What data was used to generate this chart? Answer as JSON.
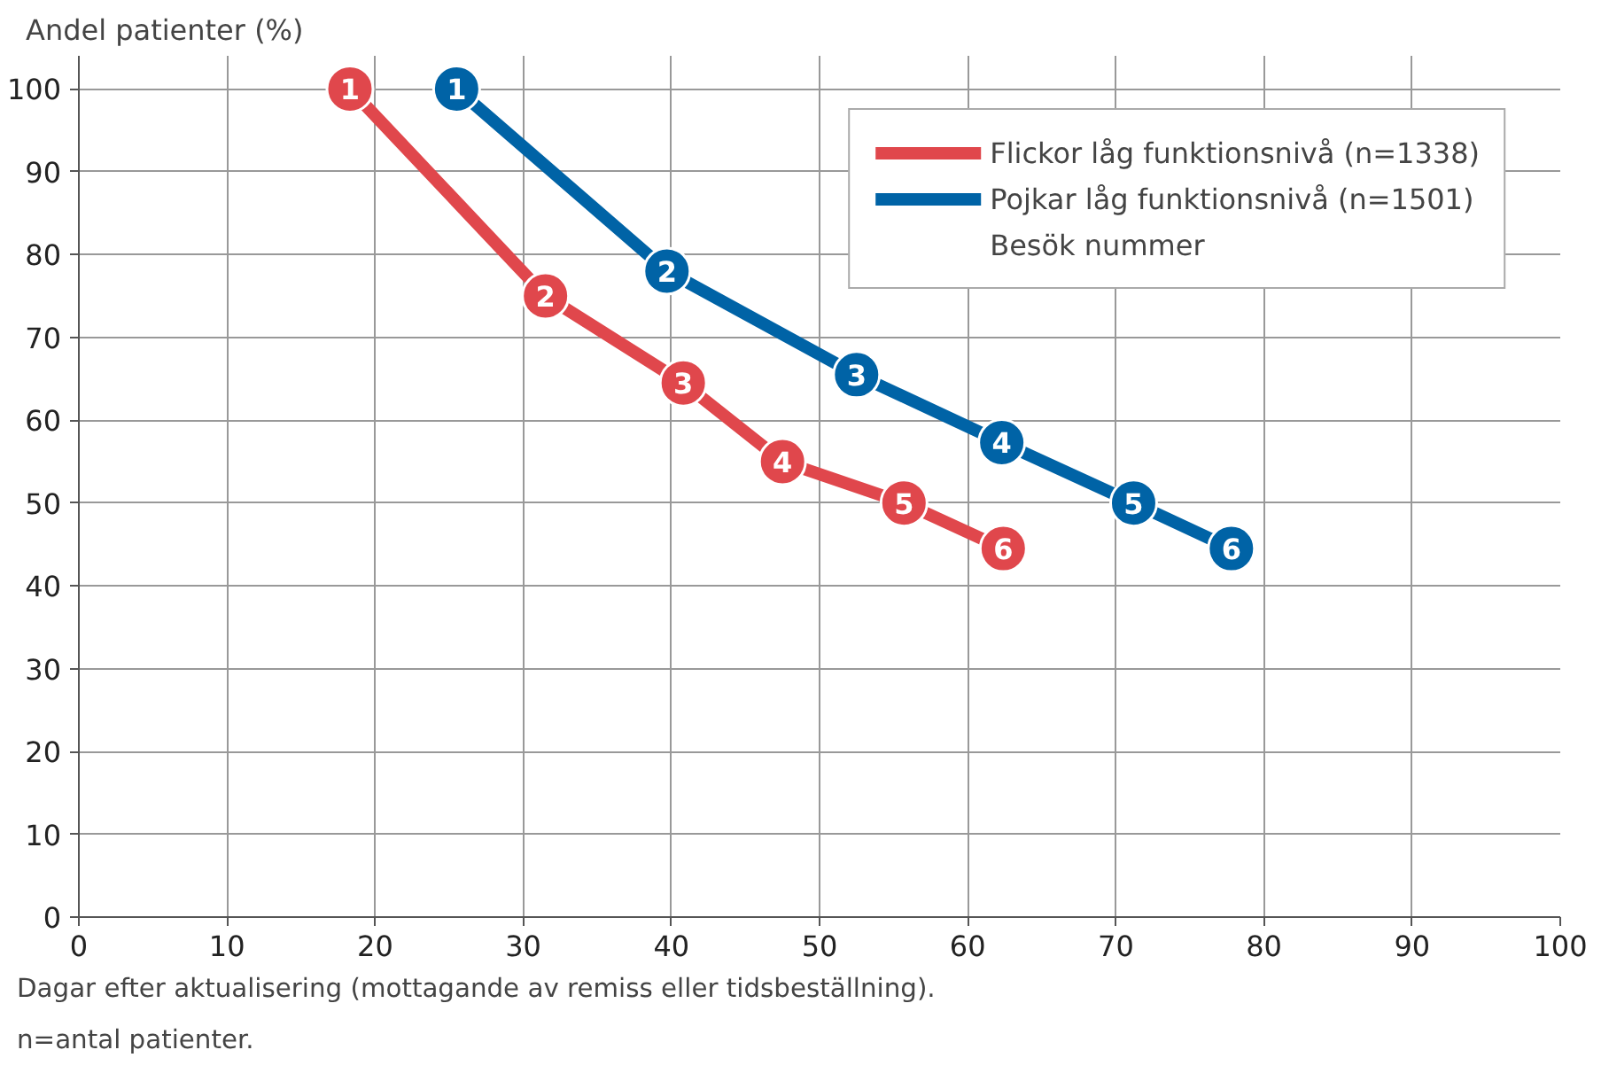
{
  "chart_data": {
    "type": "line",
    "ylabel": "Andel patienter (%)",
    "xlabel": "Dagar efter aktualisering (mottagande av remiss eller tidsbeställning).",
    "xlim": [
      0,
      100
    ],
    "xticks": [
      0,
      10,
      20,
      30,
      40,
      50,
      60,
      70,
      80,
      90,
      100
    ],
    "ylim": [
      0,
      104
    ],
    "yticks": [
      0,
      10,
      20,
      30,
      40,
      50,
      60,
      70,
      80,
      90,
      100
    ],
    "grid": true,
    "legend": "top right",
    "marker": "circle",
    "line_style": "solid",
    "series": [
      {
        "name": "Flickor låg funktionsnivå (n=1338)",
        "color": "#e0474c",
        "x": [
          18.3,
          31.5,
          40.8,
          47.5,
          55.7,
          62.4
        ],
        "values": [
          100,
          75,
          64.5,
          55,
          50,
          44.5
        ]
      },
      {
        "name": "Pojkar låg funktionsnivå (n=1501)",
        "color": "#0063a6",
        "x": [
          25.5,
          39.7,
          52.5,
          62.3,
          71.2,
          77.8
        ],
        "values": [
          100,
          78,
          65.5,
          57.3,
          50,
          44.5
        ]
      }
    ],
    "annotations": [
      "Besök nummer",
      "n=antal patienter.",
      {
        "text": "1",
        "x": 18.3,
        "y": 100
      },
      {
        "text": "2",
        "x": 31.5,
        "y": 75
      },
      {
        "text": "3",
        "x": 40.8,
        "y": 64.5
      },
      {
        "text": "4",
        "x": 47.5,
        "y": 55
      },
      {
        "text": "5",
        "x": 55.7,
        "y": 50
      },
      {
        "text": "6",
        "x": 62.4,
        "y": 44.5
      },
      {
        "text": "1",
        "x": 25.5,
        "y": 100
      },
      {
        "text": "2",
        "x": 39.7,
        "y": 78
      },
      {
        "text": "3",
        "x": 52.5,
        "y": 65.5
      },
      {
        "text": "4",
        "x": 62.3,
        "y": 57.3
      },
      {
        "text": "5",
        "x": 71.2,
        "y": 50
      },
      {
        "text": "6",
        "x": 77.8,
        "y": 44.5
      }
    ]
  }
}
